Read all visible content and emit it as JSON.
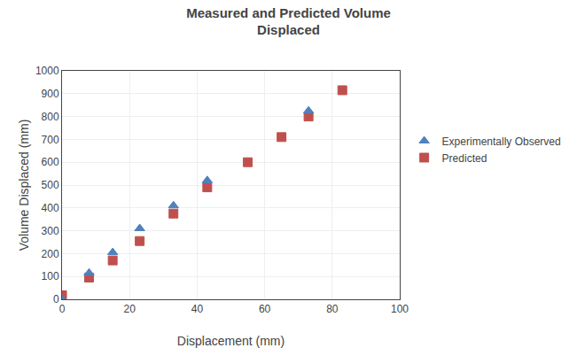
{
  "chart_data": {
    "type": "scatter",
    "title": "Measured and Predicted Volume\nDisplaced",
    "x_label": "Displacement (mm)",
    "y_label": "Volume Displaced (mm)",
    "xlim": [
      0,
      100
    ],
    "ylim": [
      0,
      1000
    ],
    "xticks": [
      0,
      20,
      40,
      60,
      80,
      100
    ],
    "yticks": [
      0,
      100,
      200,
      300,
      400,
      500,
      600,
      700,
      800,
      900,
      1000
    ],
    "grid": true,
    "legend": "right",
    "series": [
      {
        "name": "Predicted",
        "color": "#C0504D",
        "marker": "square",
        "x": [
          0,
          8,
          15,
          23,
          33,
          43,
          55,
          65,
          73,
          83
        ],
        "values": [
          18,
          95,
          170,
          255,
          375,
          490,
          600,
          710,
          800,
          915
        ]
      },
      {
        "name": "Experimentally Observed",
        "color": "#4F81BD",
        "marker": "triangle-up",
        "x": [
          0,
          8,
          15,
          23,
          33,
          43,
          73
        ],
        "values": [
          0,
          115,
          205,
          310,
          410,
          520,
          825
        ]
      }
    ]
  }
}
